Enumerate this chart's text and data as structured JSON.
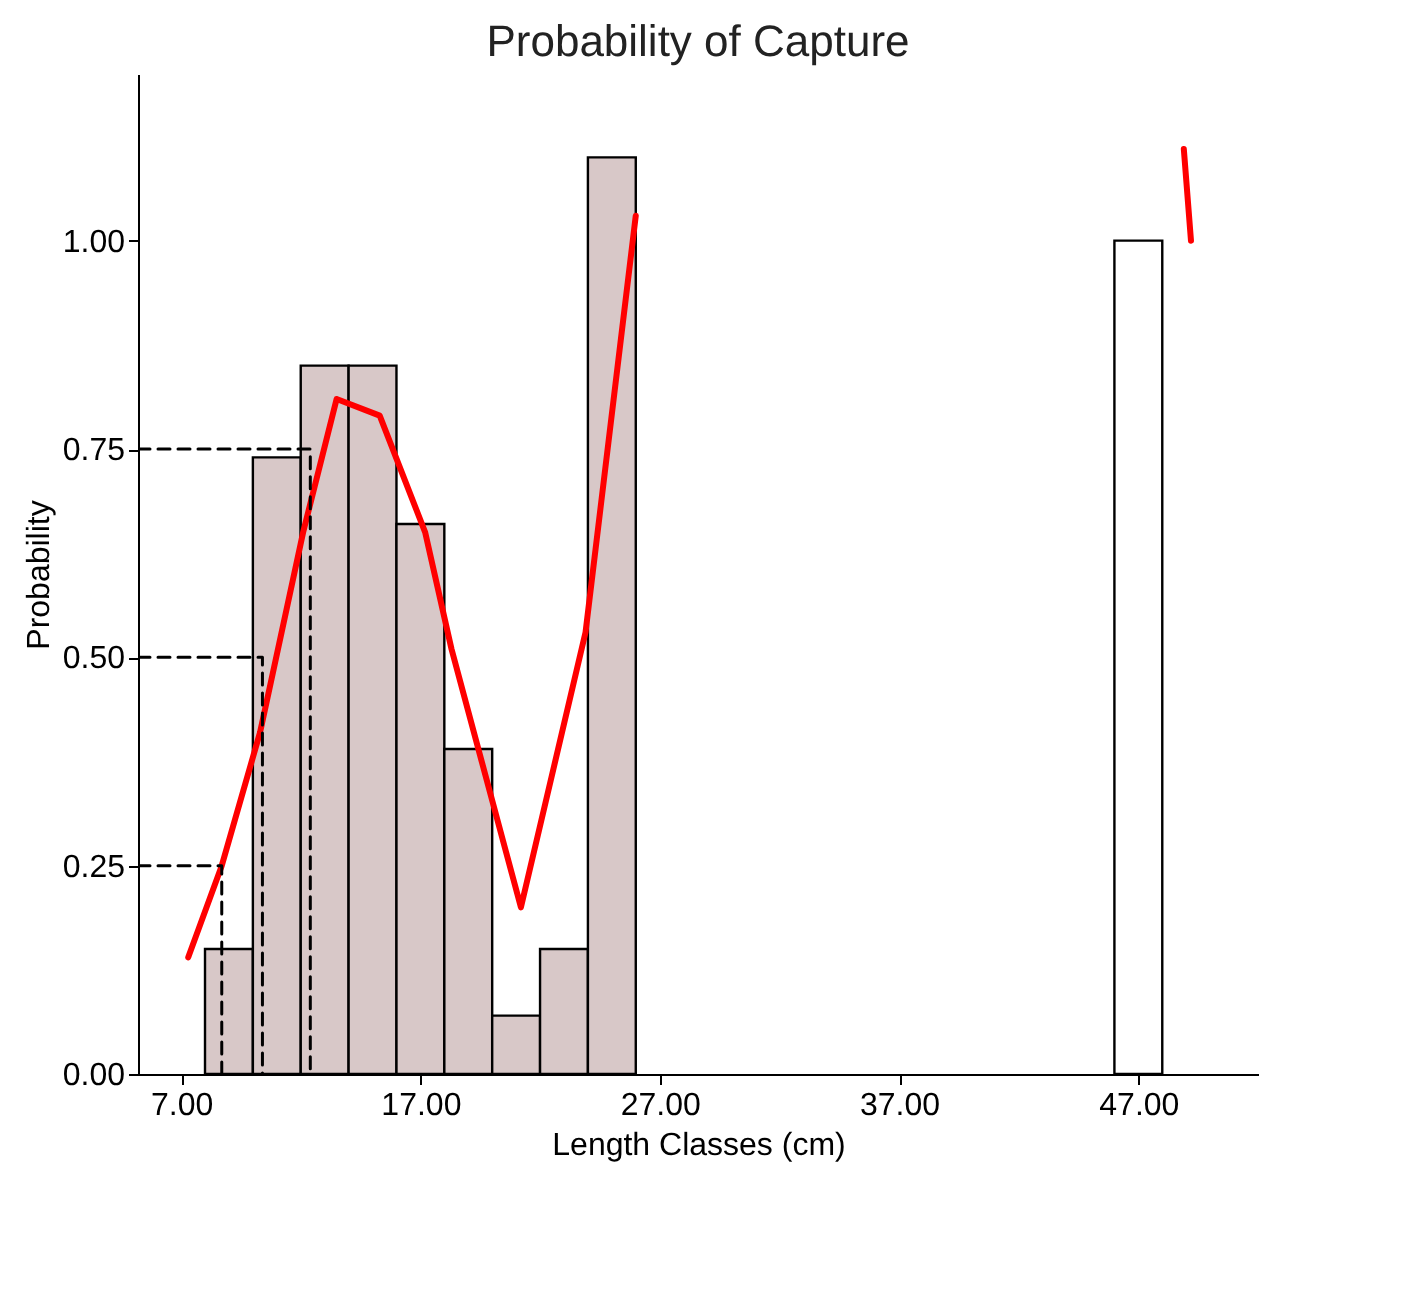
{
  "chart_data": {
    "type": "histogram",
    "title": "Probability of Capture",
    "xlabel": "Length Classes (cm)",
    "ylabel": "Probability",
    "bins": [
      8,
      10,
      12,
      14,
      16,
      18,
      20,
      22,
      24,
      26,
      28,
      30,
      32,
      34,
      36,
      38,
      40,
      42,
      44,
      46,
      48
    ],
    "values": [
      0.15,
      0.74,
      0.85,
      0.85,
      0.66,
      0.39,
      0.07,
      0.15,
      1.1,
      null,
      null,
      null,
      null,
      null,
      null,
      null,
      null,
      null,
      null,
      1.0
    ],
    "colors": [
      "#d8c8c8",
      "#d8c8c8",
      "#d8c8c8",
      "#d8c8c8",
      "#d8c8c8",
      "#d8c8c8",
      "#d8c8c8",
      "#d8c8c8",
      "#d8c8c8",
      "#d8c8c8",
      "#d8c8c8",
      "#d8c8c8",
      "#d8c8c8",
      "#d8c8c8",
      "#d8c8c8",
      "#d8c8c8",
      "#d8c8c8",
      "#d8c8c8",
      "#d8c8c8",
      "#ffffff"
    ],
    "series": [
      {
        "type": "line",
        "color": "#ff0000",
        "line_style": "solid",
        "x": [
          7.3,
          8.7,
          10.3,
          12.1,
          13.5,
          15.3,
          17.2,
          18.3,
          21.2,
          23.9,
          26.0,
          37,
          48.9,
          49.2
        ],
        "values": [
          0.14,
          0.25,
          0.41,
          0.65,
          0.81,
          0.79,
          0.65,
          0.51,
          0.2,
          0.53,
          1.03,
          null,
          1.11,
          1.0
        ]
      },
      {
        "type": "line",
        "color": "#000000",
        "line_style": "dashed",
        "x": [
          5.2,
          8.7,
          8.7
        ],
        "values": [
          0.25,
          0.25,
          0
        ]
      },
      {
        "type": "line",
        "color": "#000000",
        "line_style": "dashed",
        "x": [
          5.2,
          10.4,
          10.4
        ],
        "values": [
          0.5,
          0.5,
          0
        ]
      },
      {
        "type": "line",
        "color": "#000000",
        "line_style": "dashed",
        "x": [
          5.2,
          12.4,
          12.4
        ],
        "values": [
          0.75,
          0.75,
          0
        ]
      }
    ],
    "xlim": [
      5.2,
      52
    ],
    "ylim": [
      0,
      1.2
    ],
    "xticks": [
      {
        "value": 7,
        "label": "7.00"
      },
      {
        "value": 17,
        "label": "17.00"
      },
      {
        "value": 27,
        "label": "27.00"
      },
      {
        "value": 37,
        "label": "37.00"
      },
      {
        "value": 47,
        "label": "47.00"
      }
    ],
    "yticks": [
      {
        "value": 0,
        "label": "0.00"
      },
      {
        "value": 0.25,
        "label": "0.25"
      },
      {
        "value": 0.5,
        "label": "0.50"
      },
      {
        "value": 0.75,
        "label": "0.75"
      },
      {
        "value": 1,
        "label": "1.00"
      }
    ],
    "grid": false
  }
}
